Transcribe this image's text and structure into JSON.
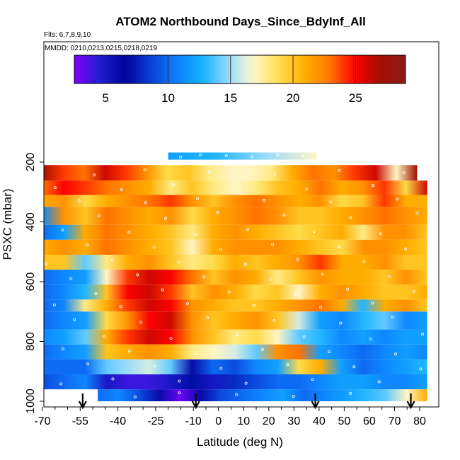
{
  "chart_data": {
    "type": "heatmap",
    "title": "ATOM2 Northbound Days_Since_BdyInf_All",
    "flights_label": "Flts: 6,7,8,9,10",
    "dates_label": "MMDD: 0210,0213,0215,0218,0219",
    "xlabel": "Latitude (deg N)",
    "ylabel": "PSXC (mbar)",
    "xlim": [
      -70,
      85
    ],
    "ylim": [
      1000,
      100
    ],
    "y_reversed": true,
    "x_ticks": [
      -70,
      -55,
      -40,
      -25,
      -10,
      0,
      10,
      20,
      30,
      40,
      50,
      60,
      70,
      80
    ],
    "x_minor_ticks": [
      -65,
      -60,
      -50,
      -45,
      -35,
      -30,
      -20,
      -15,
      -5,
      5,
      15,
      25,
      35,
      45,
      55,
      65,
      75
    ],
    "y_ticks": [
      200,
      400,
      600,
      800,
      1000
    ],
    "colorbar": {
      "range": [
        2.5,
        29
      ],
      "ticks": [
        5,
        10,
        15,
        20,
        25
      ],
      "colors": [
        "#8000ff",
        "#1f1fd0",
        "#00009a",
        "#0a3fd6",
        "#0f7fff",
        "#10b0ff",
        "#8fd8ff",
        "#fff8d0",
        "#ffe050",
        "#ffb000",
        "#ff7a00",
        "#ff0000",
        "#a01000",
        "#8b1a1a"
      ]
    },
    "flight_markers_lat": [
      -54,
      -9,
      38.5,
      76.5
    ],
    "layers": [
      {
        "p": [
          168,
          192
        ],
        "x": [
          -20,
          39
        ],
        "v": [
          12,
          13,
          15,
          17
        ]
      },
      {
        "p": [
          210,
          262
        ],
        "x": [
          -70,
          79
        ],
        "v": [
          27,
          24,
          23,
          26,
          24,
          22,
          19,
          20,
          18,
          17,
          17,
          18,
          21,
          23,
          22,
          24,
          26,
          17,
          27
        ]
      },
      {
        "p": [
          262,
          310
        ],
        "x": [
          -70,
          83
        ],
        "v": [
          23,
          25,
          24,
          23,
          22,
          21,
          18,
          20,
          18,
          17,
          18,
          20,
          21,
          23,
          21,
          22,
          24,
          19,
          26
        ]
      },
      {
        "p": [
          310,
          350
        ],
        "x": [
          -70,
          83
        ],
        "v": [
          21,
          22,
          19,
          21,
          22,
          23,
          24,
          22,
          20,
          22,
          23,
          22,
          21,
          22,
          19,
          20,
          24,
          21,
          21
        ]
      },
      {
        "p": [
          350,
          410
        ],
        "x": [
          -70,
          83
        ],
        "v": [
          11,
          22,
          20,
          23,
          22,
          21,
          22,
          19,
          21,
          22,
          23,
          22,
          20,
          20,
          21,
          22,
          23,
          22,
          21
        ]
      },
      {
        "p": [
          410,
          460
        ],
        "x": [
          -70,
          83
        ],
        "v": [
          10,
          12,
          21,
          23,
          22,
          21,
          20,
          18,
          21,
          22,
          21,
          20,
          19,
          20,
          21,
          18,
          22,
          22,
          20
        ]
      },
      {
        "p": [
          460,
          510
        ],
        "x": [
          -70,
          83
        ],
        "v": [
          21,
          22,
          21,
          23,
          22,
          21,
          20,
          17,
          21,
          22,
          22,
          22,
          21,
          20,
          19,
          22,
          22,
          21,
          20
        ]
      },
      {
        "p": [
          510,
          560
        ],
        "x": [
          -70,
          83
        ],
        "v": [
          20,
          20,
          14,
          18,
          21,
          22,
          20,
          18,
          19,
          21,
          20,
          21,
          22,
          24,
          21,
          21,
          22,
          20,
          20
        ]
      },
      {
        "p": [
          560,
          610
        ],
        "x": [
          -70,
          83
        ],
        "v": [
          10,
          11,
          12,
          17,
          24,
          26,
          25,
          23,
          20,
          22,
          21,
          18,
          20,
          22,
          21,
          21,
          20,
          22,
          20
        ]
      },
      {
        "p": [
          610,
          660
        ],
        "x": [
          -70,
          83
        ],
        "v": [
          10,
          11,
          13,
          20,
          25,
          26,
          24,
          20,
          22,
          21,
          19,
          20,
          17,
          21,
          22,
          21,
          20,
          20,
          21
        ]
      },
      {
        "p": [
          660,
          700
        ],
        "x": [
          -70,
          83
        ],
        "v": [
          10,
          11,
          18,
          21,
          24,
          26,
          25,
          22,
          21,
          20,
          20,
          21,
          22,
          23,
          21,
          13,
          21,
          22,
          20
        ]
      },
      {
        "p": [
          700,
          760
        ],
        "x": [
          -70,
          83
        ],
        "v": [
          10,
          11,
          12,
          19,
          22,
          25,
          26,
          22,
          20,
          21,
          22,
          20,
          16,
          12,
          11,
          13,
          14,
          11,
          12
        ]
      },
      {
        "p": [
          760,
          810
        ],
        "x": [
          -70,
          83
        ],
        "v": [
          11,
          12,
          14,
          21,
          24,
          26,
          25,
          22,
          20,
          18,
          19,
          17,
          14,
          13,
          11,
          12,
          11,
          12,
          12
        ]
      },
      {
        "p": [
          810,
          860
        ],
        "x": [
          -70,
          83
        ],
        "v": [
          10,
          11,
          12,
          20,
          21,
          22,
          21,
          18,
          17,
          16,
          14,
          22,
          23,
          12,
          11,
          10,
          11,
          12,
          11
        ]
      },
      {
        "p": [
          860,
          910
        ],
        "x": [
          -70,
          83
        ],
        "v": [
          10,
          10,
          10,
          14,
          15,
          16,
          14,
          6,
          10,
          9,
          11,
          12,
          19,
          21,
          12,
          10,
          11,
          12,
          13
        ]
      },
      {
        "p": [
          910,
          960
        ],
        "x": [
          -70,
          83
        ],
        "v": [
          9,
          10,
          11,
          5,
          4,
          4,
          5,
          7,
          5,
          8,
          9,
          10,
          10,
          11,
          12,
          12,
          11,
          11,
          12
        ]
      },
      {
        "p": [
          960,
          1000
        ],
        "x": [
          -48,
          83
        ],
        "v": [
          10,
          11,
          9,
          6,
          3,
          6,
          9,
          10,
          11,
          12,
          10,
          11,
          12,
          13,
          14,
          17,
          21
        ]
      }
    ]
  }
}
